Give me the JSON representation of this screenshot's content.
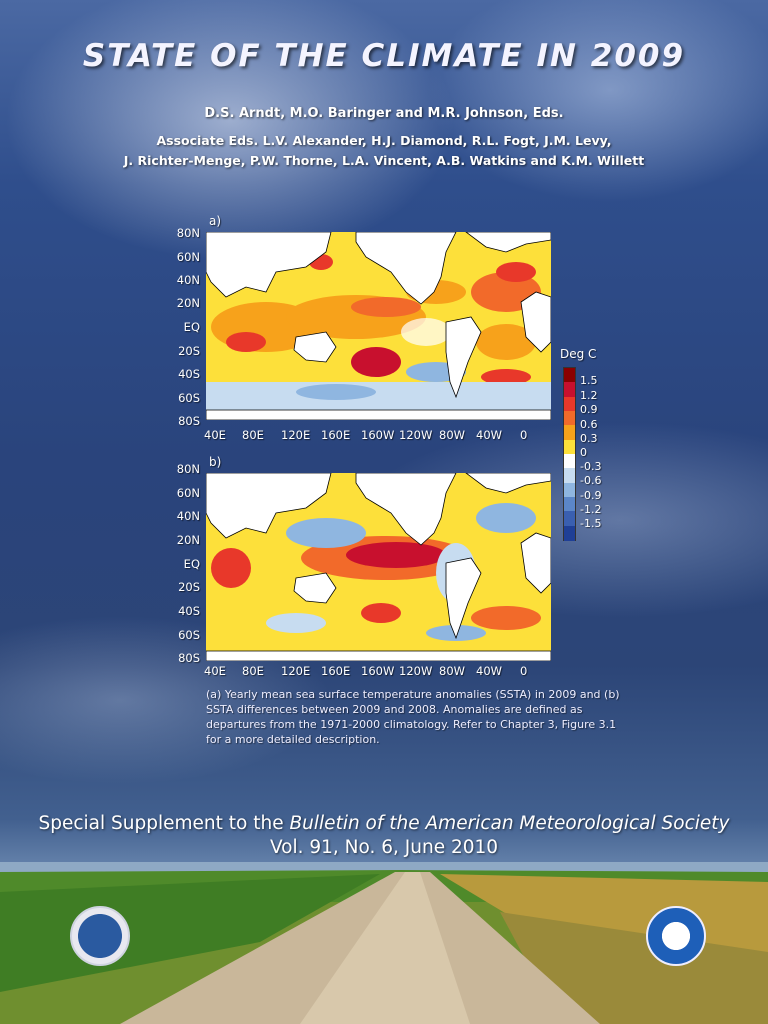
{
  "cover": {
    "title": "STATE OF THE CLIMATE IN 2009",
    "editors": "D.S. Arndt, M.O. Baringer and M.R. Johnson, Eds.",
    "associate_line1": "Associate Eds. L.V. Alexander, H.J. Diamond, R.L. Fogt, J.M. Levy,",
    "associate_line2": "J. Richter-Menge, P.W. Thorne, L.A. Vincent, A.B. Watkins and K.M. Willett",
    "caption": "(a) Yearly mean sea surface temperature anomalies (SSTA) in 2009 and (b) SSTA differences between 2009 and 2008. Anomalies are defined as departures from the 1971-2000 climatology.  Refer to Chapter 3, Figure 3.1 for a more detailed description.",
    "supplement_prefix": "Special Supplement to the ",
    "supplement_journal": "Bulletin of the American Meteorological Society",
    "volume": "Vol. 91, No. 6, June 2010"
  },
  "figure": {
    "panels": [
      {
        "label": "a)"
      },
      {
        "label": "b)"
      }
    ],
    "lat_labels": [
      "80N",
      "60N",
      "40N",
      "20N",
      "EQ",
      "20S",
      "40S",
      "60S",
      "80S"
    ],
    "lon_labels": [
      "40E",
      "80E",
      "120E",
      "160E",
      "160W",
      "120W",
      "80W",
      "40W",
      "0"
    ],
    "legend_title": "Deg C",
    "legend_labels": [
      "1.5",
      "1.2",
      "0.9",
      "0.6",
      "0.3",
      "0",
      "-0.3",
      "-0.6",
      "-0.9",
      "-1.2",
      "-1.5"
    ],
    "legend_colors": [
      "#8b0000",
      "#c8102e",
      "#e8382a",
      "#f26a2a",
      "#f7a21b",
      "#fde03a",
      "#ffffff",
      "#c7dcf0",
      "#8fb6e0",
      "#5b86c8",
      "#3a5fb0",
      "#1f3f96"
    ]
  },
  "icons": {
    "commerce_seal": "department-of-commerce-seal-icon",
    "noaa_seal": "noaa-seal-icon"
  }
}
